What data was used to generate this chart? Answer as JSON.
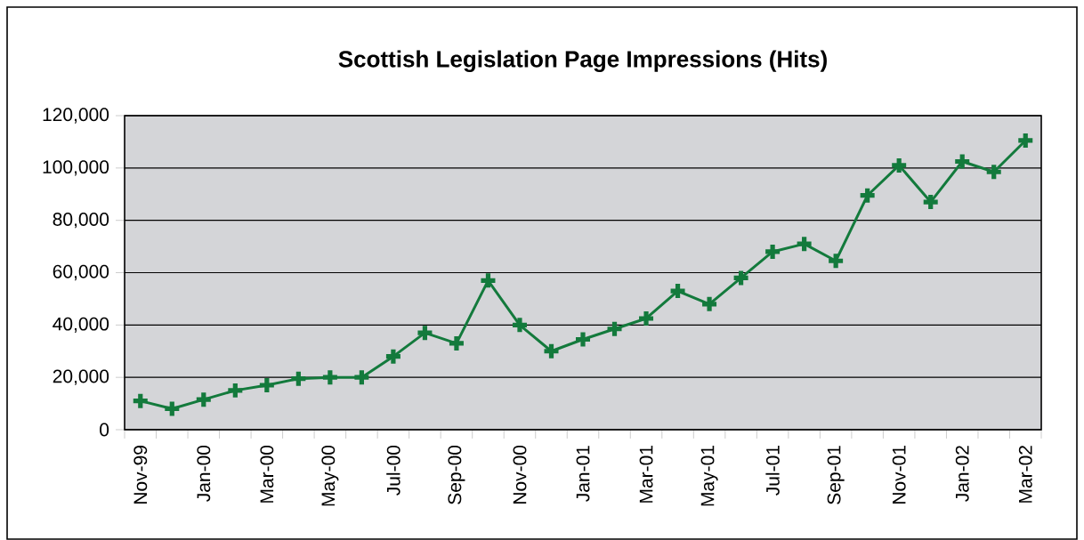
{
  "chart_data": {
    "type": "line",
    "title": "Scottish Legislation Page Impressions (Hits)",
    "categories": [
      "Nov-99",
      null,
      "Jan-00",
      null,
      "Mar-00",
      null,
      "May-00",
      null,
      "Jul-00",
      null,
      "Sep-00",
      null,
      "Nov-00",
      null,
      "Jan-01",
      null,
      "Mar-01",
      null,
      "May-01",
      null,
      "Jul-01",
      null,
      "Sep-01",
      null,
      "Nov-01",
      null,
      "Jan-02",
      null,
      "Mar-02"
    ],
    "series": [
      {
        "color": "#137a3c",
        "values": [
          11000,
          8000,
          11500,
          15000,
          17000,
          19500,
          20000,
          20000,
          28000,
          37000,
          33000,
          57000,
          40000,
          30000,
          34500,
          38500,
          42500,
          53000,
          48000,
          58000,
          68000,
          71000,
          64500,
          89500,
          101000,
          87000,
          102500,
          98500,
          110500
        ]
      }
    ],
    "ylim": [
      0,
      120000
    ],
    "yticks": [
      0,
      {
        "value": 20000,
        "label": "20,000"
      },
      {
        "value": 40000,
        "label": "40,000"
      },
      {
        "value": 60000,
        "label": "60,000"
      },
      {
        "value": 80000,
        "label": "80,000"
      },
      {
        "value": 100000,
        "label": "100,000"
      },
      {
        "value": 120000,
        "label": "120,000"
      }
    ],
    "grid": "y",
    "marker": "cross",
    "line_style": "solid"
  }
}
